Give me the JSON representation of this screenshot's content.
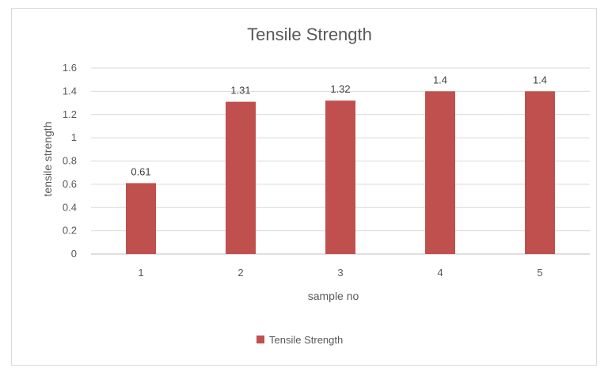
{
  "chart_data": {
    "type": "bar",
    "title": "Tensile Strength",
    "xlabel": "sample no",
    "ylabel": "tensile strength",
    "categories": [
      "1",
      "2",
      "3",
      "4",
      "5"
    ],
    "series": [
      {
        "name": "Tensile Strength",
        "values": [
          0.61,
          1.31,
          1.32,
          1.4,
          1.4
        ],
        "labels": [
          "0.61",
          "1.31",
          "1.32",
          "1.4",
          "1.4"
        ],
        "color": "#c0504d"
      }
    ],
    "ylim": [
      0,
      1.6
    ],
    "yticks": [
      "0",
      "0.2",
      "0.4",
      "0.6",
      "0.8",
      "1",
      "1.2",
      "1.4",
      "1.6"
    ],
    "grid": true,
    "legend": "bottom"
  }
}
